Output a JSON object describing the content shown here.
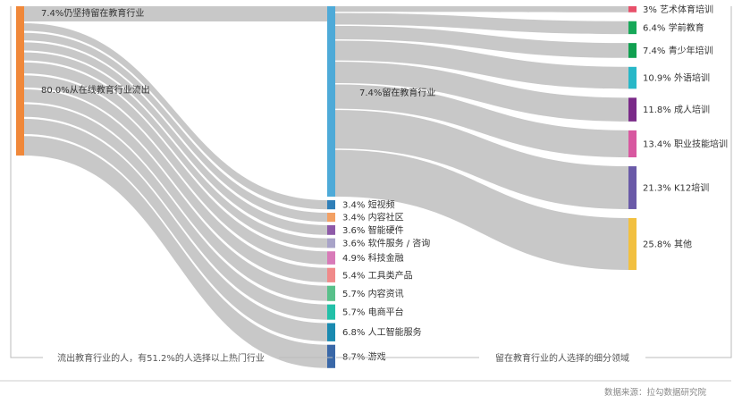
{
  "chart_data": {
    "type": "sankey",
    "colors": {
      "flow": "#c8c8c8",
      "source_bar": "#f0883a",
      "middle_bar": "#4eaad8"
    },
    "source": {
      "stay_label": "7.4%仍坚持留在教育行业",
      "out_label": "80.0%从在线教育行业流出",
      "stay_value": 7.4,
      "out_value": 80.0
    },
    "middle_label": "7.4%留在教育行业",
    "out_industries": [
      {
        "name": "短视频",
        "value": 3.4,
        "value_text": "3.4%",
        "color": "#2f7fb8"
      },
      {
        "name": "内容社区",
        "value": 3.4,
        "value_text": "3.4%",
        "color": "#f3a063"
      },
      {
        "name": "智能硬件",
        "value": 3.6,
        "value_text": "3.6%",
        "color": "#8e5aa8"
      },
      {
        "name": "软件服务 / 咨询",
        "value": 3.6,
        "value_text": "3.6%",
        "color": "#a8a3c8"
      },
      {
        "name": "科技金融",
        "value": 4.9,
        "value_text": "4.9%",
        "color": "#d87ab8"
      },
      {
        "name": "工具类产品",
        "value": 5.4,
        "value_text": "5.4%",
        "color": "#f08a8a"
      },
      {
        "name": "内容资讯",
        "value": 5.7,
        "value_text": "5.7%",
        "color": "#58c08a"
      },
      {
        "name": "电商平台",
        "value": 5.7,
        "value_text": "5.7%",
        "color": "#22c0a8"
      },
      {
        "name": "人工智能服务",
        "value": 6.8,
        "value_text": "6.8%",
        "color": "#1a8ab0"
      },
      {
        "name": "游戏",
        "value": 8.7,
        "value_text": "8.7%",
        "color": "#3a68a8"
      }
    ],
    "edu_segments": [
      {
        "name": "艺术体育培训",
        "value": 3,
        "value_text": "3%",
        "color": "#e8506a"
      },
      {
        "name": "学前教育",
        "value": 6.4,
        "value_text": "6.4%",
        "color": "#16a858"
      },
      {
        "name": "青少年培训",
        "value": 7.4,
        "value_text": "7.4%",
        "color": "#10a050"
      },
      {
        "name": "外语培训",
        "value": 10.9,
        "value_text": "10.9%",
        "color": "#28b8c8"
      },
      {
        "name": "成人培训",
        "value": 11.8,
        "value_text": "11.8%",
        "color": "#7a2a88"
      },
      {
        "name": "职业技能培训",
        "value": 13.4,
        "value_text": "13.4%",
        "color": "#d858a0"
      },
      {
        "name": "K12培训",
        "value": 21.3,
        "value_text": "21.3%",
        "color": "#6a5aa8"
      },
      {
        "name": "其他",
        "value": 25.8,
        "value_text": "25.8%",
        "color": "#f2c040"
      }
    ],
    "captions": {
      "left": "流出教育行业的人，有51.2%的人选择以上热门行业",
      "right": "留在教育行业的人选择的细分领域"
    }
  },
  "source_note": "数据来源：拉勾数据研究院"
}
